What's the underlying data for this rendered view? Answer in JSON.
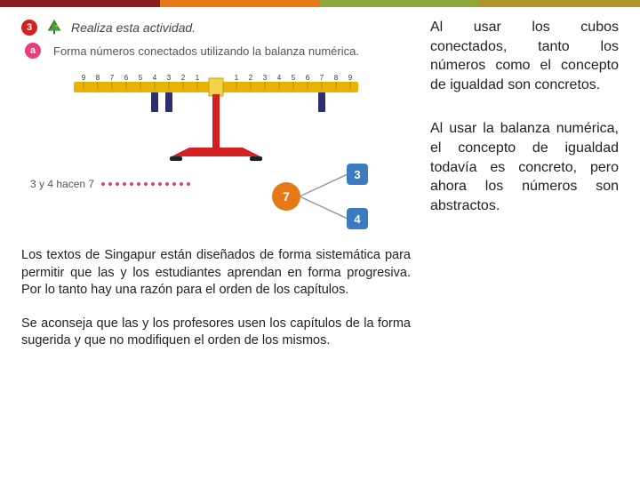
{
  "topbar_colors": [
    "#8b1f1f",
    "#e67817",
    "#8fa83c",
    "#b09429"
  ],
  "activity": {
    "number_badge": "3",
    "title": "Realiza esta actividad.",
    "sub_badge": "a",
    "subtitle": "Forma números conectados utilizando la balanza numérica."
  },
  "balance": {
    "left_numbers": [
      "9",
      "8",
      "7",
      "6",
      "5",
      "4",
      "3",
      "2",
      "1"
    ],
    "right_numbers": [
      "1",
      "2",
      "3",
      "4",
      "5",
      "6",
      "7",
      "8",
      "9"
    ],
    "beam_color": "#e8b300",
    "hanger_color": "#2b2f6b",
    "stand_color": "#d42020",
    "left_hangers_at": [
      3,
      4
    ],
    "right_hangers_at": [
      7
    ]
  },
  "caption": "3 y 4 hacen 7",
  "dots_count": 13,
  "bond": {
    "whole": "7",
    "parts": [
      "3",
      "4"
    ],
    "colors": {
      "whole": "#e67817",
      "part": "#3b7bbf",
      "line": "#999999"
    }
  },
  "left_paragraphs": [
    "Los textos de Singapur están diseñados de forma sistemática para permitir que las y los estudiantes aprendan en forma progresiva. Por lo tanto hay una razón para el orden de los capítulos.",
    "Se aconseja que las y los profesores usen los capítulos de la forma sugerida y que no modifiquen el orden de los mismos."
  ],
  "right_paragraphs": [
    "Al usar los cubos conectados, tanto los números como el concepto de igualdad son concretos.",
    "Al usar la balanza numérica, el concepto de igualdad todavía es concreto, pero ahora los números son abstractos."
  ]
}
